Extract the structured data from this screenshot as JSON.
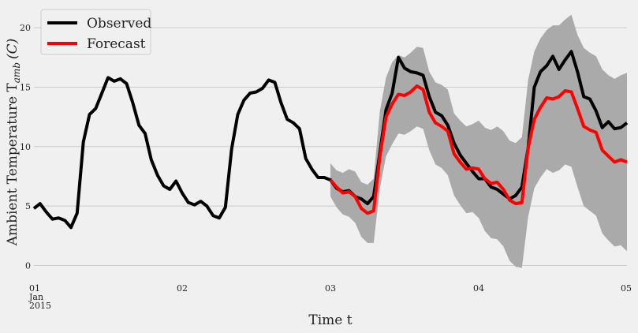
{
  "chart_data": {
    "type": "line",
    "title": "",
    "xlabel": "Time t",
    "ylabel": "Ambient Temperature T",
    "ylabel_sub": "amb",
    "ylabel_unit": "(C)",
    "ylim": [
      -0.3,
      22
    ],
    "xlim": [
      0,
      96
    ],
    "grid": true,
    "legend_position": "top-left",
    "x_ticks": [
      {
        "x": 0,
        "label": "01",
        "sub1": "Jan",
        "sub2": "2015"
      },
      {
        "x": 24,
        "label": "02"
      },
      {
        "x": 48,
        "label": "03"
      },
      {
        "x": 72,
        "label": "04"
      },
      {
        "x": 96,
        "label": "05"
      }
    ],
    "y_ticks": [
      0,
      5,
      10,
      15,
      20
    ],
    "colors": {
      "observed": "#000000",
      "forecast": "#ff0000",
      "band": "#aaaaaa",
      "grid": "#cbcbcb",
      "background": "#f0f0f0"
    },
    "series": [
      {
        "name": "Observed",
        "x_start": 0,
        "x_step": 1,
        "values": [
          4.8,
          5.2,
          4.5,
          3.9,
          4.0,
          3.8,
          3.2,
          4.4,
          10.4,
          12.7,
          13.2,
          14.5,
          15.8,
          15.5,
          15.7,
          15.3,
          13.7,
          11.8,
          11.1,
          8.9,
          7.6,
          6.7,
          6.4,
          7.1,
          6.1,
          5.3,
          5.1,
          5.4,
          5.0,
          4.2,
          4.0,
          4.9,
          9.8,
          12.7,
          13.9,
          14.5,
          14.6,
          14.9,
          15.6,
          15.4,
          13.7,
          12.3,
          12.0,
          11.5,
          9.0,
          8.1,
          7.4,
          7.4,
          7.2,
          6.5,
          6.2,
          6.3,
          5.8,
          5.6,
          5.2,
          5.8,
          9.5,
          13.1,
          14.5,
          17.5,
          16.6,
          16.3,
          16.2,
          16.0,
          14.2,
          12.9,
          12.6,
          11.8,
          10.3,
          9.3,
          8.6,
          7.9,
          7.3,
          7.3,
          6.6,
          6.4,
          6.0,
          5.6,
          5.9,
          6.6,
          9.9,
          15.0,
          16.3,
          16.8,
          17.6,
          16.5,
          17.3,
          18.0,
          16.3,
          14.2,
          14.0,
          13.0,
          11.6,
          12.1,
          11.5,
          11.6,
          12.0
        ]
      },
      {
        "name": "Forecast",
        "x_start": 48,
        "x_step": 1,
        "values": [
          7.2,
          6.6,
          6.1,
          6.2,
          5.8,
          4.8,
          4.4,
          4.6,
          9.2,
          12.5,
          13.6,
          14.4,
          14.3,
          14.6,
          15.1,
          14.8,
          12.9,
          12.0,
          11.7,
          11.3,
          9.4,
          8.7,
          8.1,
          8.2,
          8.1,
          7.3,
          6.9,
          7.0,
          6.4,
          5.5,
          5.2,
          5.3,
          9.9,
          12.3,
          13.3,
          14.1,
          14.0,
          14.2,
          14.7,
          14.6,
          13.2,
          11.7,
          11.4,
          11.2,
          9.7,
          9.2,
          8.7,
          8.9,
          8.7
        ]
      }
    ],
    "band": {
      "x_start": 48,
      "x_step": 1,
      "upper": [
        8.6,
        8.0,
        7.8,
        8.1,
        7.9,
        7.0,
        6.8,
        7.3,
        13.0,
        15.8,
        17.1,
        17.7,
        17.5,
        17.9,
        18.4,
        18.3,
        16.3,
        15.4,
        15.2,
        14.8,
        12.8,
        12.2,
        11.7,
        11.9,
        12.2,
        11.6,
        11.4,
        11.7,
        11.3,
        10.5,
        10.3,
        10.8,
        15.6,
        18.0,
        19.1,
        19.8,
        20.2,
        20.2,
        20.7,
        21.1,
        19.4,
        18.3,
        17.9,
        17.6,
        16.5,
        16.0,
        15.7,
        16.0,
        16.2
      ],
      "lower": [
        5.8,
        4.9,
        4.3,
        4.1,
        3.6,
        2.4,
        1.9,
        1.9,
        6.5,
        9.2,
        10.2,
        11.1,
        11.0,
        11.3,
        11.7,
        11.5,
        9.7,
        8.5,
        8.2,
        7.6,
        5.9,
        5.1,
        4.4,
        4.5,
        4.0,
        2.9,
        2.3,
        2.2,
        1.6,
        0.4,
        -0.1,
        -0.2,
        4.1,
        6.5,
        7.4,
        8.1,
        7.8,
        8.0,
        8.5,
        8.3,
        6.6,
        5.0,
        4.6,
        4.2,
        2.7,
        2.1,
        1.6,
        1.7,
        1.2
      ]
    }
  }
}
